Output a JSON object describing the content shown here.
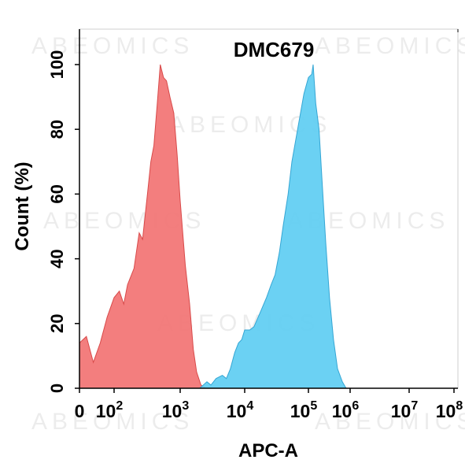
{
  "chart_data": {
    "type": "area",
    "title": "DMC679",
    "xlabel": "APC-A",
    "ylabel": "Count  (%)",
    "x_scale": "biexponential",
    "xlim": [
      -100,
      100000000
    ],
    "ylim": [
      0,
      100
    ],
    "x_ticks": [
      {
        "value": 0,
        "base": "0",
        "exp": ""
      },
      {
        "value": 100,
        "base": "10",
        "exp": "2"
      },
      {
        "value": 1000,
        "base": "10",
        "exp": "3"
      },
      {
        "value": 10000,
        "base": "10",
        "exp": "4"
      },
      {
        "value": 100000,
        "base": "10",
        "exp": "5"
      },
      {
        "value": 1000000,
        "base": "10",
        "exp": "6"
      },
      {
        "value": 10000000,
        "base": "10",
        "exp": "7"
      },
      {
        "value": 100000000,
        "base": "10",
        "exp": "8"
      }
    ],
    "y_ticks": [
      0,
      20,
      40,
      60,
      80,
      100
    ],
    "watermark": "ABEOMICS",
    "series": [
      {
        "fill": "#f27373",
        "stroke": "#d84a4a",
        "points": [
          [
            -100,
            35
          ],
          [
            -70,
            22
          ],
          [
            -40,
            12
          ],
          [
            -15,
            10
          ],
          [
            0,
            14
          ],
          [
            20,
            16
          ],
          [
            40,
            8
          ],
          [
            60,
            14
          ],
          [
            80,
            22
          ],
          [
            100,
            28
          ],
          [
            120,
            30
          ],
          [
            140,
            26
          ],
          [
            160,
            32
          ],
          [
            200,
            37
          ],
          [
            240,
            48
          ],
          [
            270,
            46
          ],
          [
            320,
            60
          ],
          [
            360,
            70
          ],
          [
            400,
            75
          ],
          [
            450,
            88
          ],
          [
            500,
            100
          ],
          [
            560,
            96
          ],
          [
            620,
            95
          ],
          [
            700,
            90
          ],
          [
            800,
            85
          ],
          [
            900,
            72
          ],
          [
            1000,
            58
          ],
          [
            1200,
            38
          ],
          [
            1400,
            26
          ],
          [
            1600,
            12
          ],
          [
            1800,
            5
          ],
          [
            2100,
            1
          ],
          [
            2500,
            0
          ]
        ]
      },
      {
        "fill": "#5ecdf2",
        "stroke": "#35a6d4",
        "points": [
          [
            2000,
            0
          ],
          [
            2600,
            2
          ],
          [
            3000,
            1
          ],
          [
            3600,
            3
          ],
          [
            4500,
            4
          ],
          [
            5200,
            3
          ],
          [
            6000,
            6
          ],
          [
            7000,
            11
          ],
          [
            8000,
            14
          ],
          [
            9000,
            15
          ],
          [
            10000,
            18
          ],
          [
            12000,
            18
          ],
          [
            14000,
            19
          ],
          [
            18000,
            24
          ],
          [
            22000,
            28
          ],
          [
            26000,
            32
          ],
          [
            30000,
            35
          ],
          [
            35000,
            42
          ],
          [
            40000,
            50
          ],
          [
            48000,
            60
          ],
          [
            55000,
            70
          ],
          [
            65000,
            78
          ],
          [
            75000,
            85
          ],
          [
            85000,
            91
          ],
          [
            100000,
            96
          ],
          [
            120000,
            97
          ],
          [
            130000,
            100
          ],
          [
            150000,
            88
          ],
          [
            180000,
            80
          ],
          [
            210000,
            65
          ],
          [
            260000,
            45
          ],
          [
            320000,
            28
          ],
          [
            400000,
            15
          ],
          [
            500000,
            6
          ],
          [
            650000,
            2
          ],
          [
            800000,
            0
          ]
        ]
      }
    ]
  }
}
